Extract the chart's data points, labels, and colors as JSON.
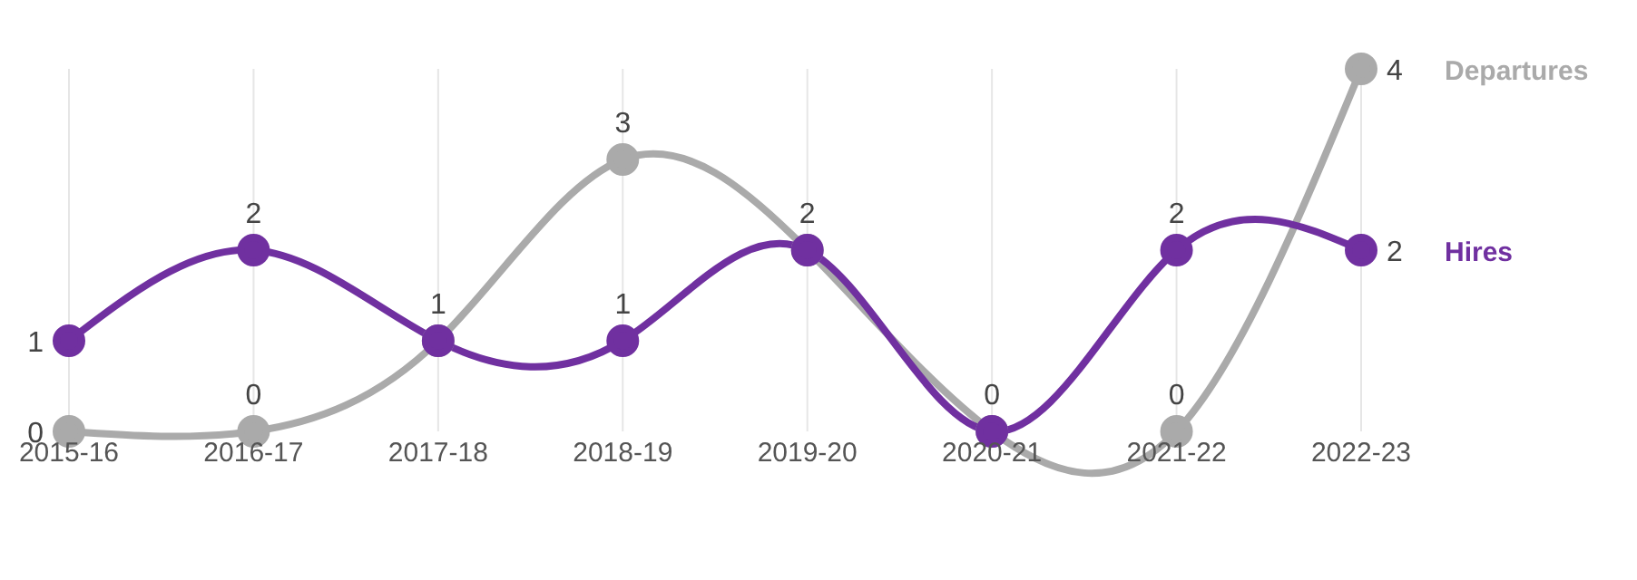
{
  "chart_data": {
    "type": "line",
    "categories": [
      "2015-16",
      "2016-17",
      "2017-18",
      "2018-19",
      "2019-20",
      "2020-21",
      "2021-22",
      "2022-23"
    ],
    "series": [
      {
        "name": "Departures",
        "color": "#aaaaaa",
        "values": [
          0,
          0,
          1,
          3,
          2,
          0,
          0,
          4
        ],
        "value_labels": [
          "0",
          "0",
          null,
          "3",
          null,
          null,
          "0",
          "4"
        ]
      },
      {
        "name": "Hires",
        "color": "#7030a0",
        "values": [
          1,
          2,
          1,
          1,
          2,
          0,
          2,
          2
        ],
        "value_labels": [
          "1",
          "2",
          "1",
          "1",
          "2",
          "0",
          "2",
          "2"
        ]
      }
    ],
    "grid": "x",
    "marker": "circle",
    "line_style": "solid"
  }
}
